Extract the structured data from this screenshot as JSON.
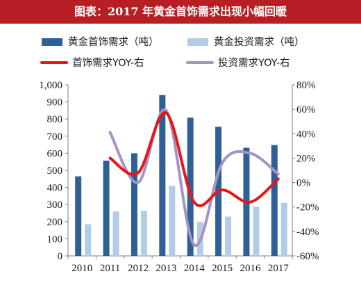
{
  "title": "图表：2017 年黄金首饰需求出现小幅回暖",
  "chart_data": {
    "type": "bar",
    "categories": [
      "2010",
      "2011",
      "2012",
      "2013",
      "2014",
      "2015",
      "2016",
      "2017"
    ],
    "series": [
      {
        "name": "黄金首饰需求（吨）",
        "type": "bar",
        "axis": "left",
        "color": "#2e5f97",
        "values": [
          465,
          557,
          600,
          940,
          808,
          755,
          632,
          648
        ]
      },
      {
        "name": "黄金投资需求（吨）",
        "type": "bar",
        "axis": "left",
        "color": "#b4cbe6",
        "values": [
          185,
          260,
          262,
          410,
          200,
          230,
          288,
          310
        ]
      },
      {
        "name": "首饰需求YOY-右",
        "type": "line",
        "axis": "right",
        "color": "#e8141b",
        "values": [
          null,
          20,
          8,
          57,
          -16,
          -6,
          -16,
          3
        ]
      },
      {
        "name": "投资需求YOY-右",
        "type": "line",
        "axis": "right",
        "color": "#a394c4",
        "values": [
          null,
          41,
          0,
          59,
          -51,
          16,
          24,
          7
        ]
      }
    ],
    "ylim": [
      0,
      1000
    ],
    "yticks": [
      "0",
      "100",
      "200",
      "300",
      "400",
      "500",
      "600",
      "700",
      "800",
      "900",
      "1,000"
    ],
    "y2lim": [
      -60,
      80
    ],
    "y2ticks": [
      "-60%",
      "-40%",
      "-20%",
      "0%",
      "20%",
      "40%",
      "60%",
      "80%"
    ],
    "legend_position": "top"
  }
}
